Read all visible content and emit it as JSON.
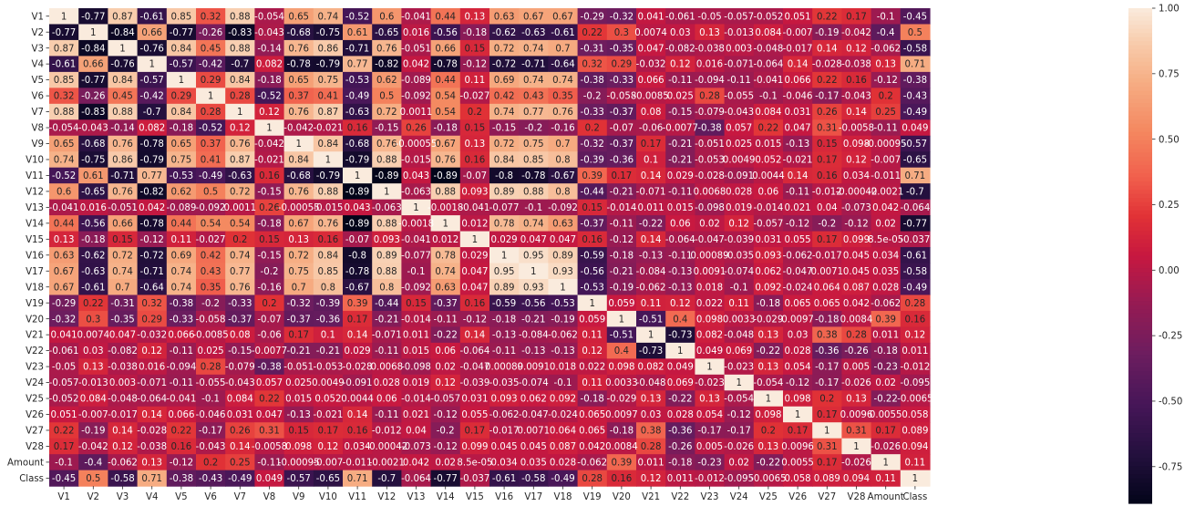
{
  "chart_data": {
    "type": "heatmap",
    "title": "",
    "xlabel": "",
    "ylabel": "",
    "labels": [
      "V1",
      "V2",
      "V3",
      "V4",
      "V5",
      "V6",
      "V7",
      "V8",
      "V9",
      "V10",
      "V11",
      "V12",
      "V13",
      "V14",
      "V15",
      "V16",
      "V17",
      "V18",
      "V19",
      "V20",
      "V21",
      "V22",
      "V23",
      "V24",
      "V25",
      "V26",
      "V27",
      "V28",
      "Amount",
      "Class"
    ],
    "annotations": [
      [
        "1",
        "-0.77",
        "0.87",
        "-0.61",
        "0.85",
        "0.32",
        "0.88",
        "-0.054",
        "0.65",
        "0.74",
        "-0.52",
        "0.6",
        "-0.041",
        "0.44",
        "0.13",
        "0.63",
        "0.67",
        "0.67",
        "-0.29",
        "-0.32",
        "0.041",
        "-0.061",
        "-0.05",
        "-0.057",
        "-0.052",
        "0.051",
        "0.22",
        "0.17",
        "-0.1",
        "-0.45"
      ],
      [
        "-0.77",
        "1",
        "-0.84",
        "0.66",
        "-0.77",
        "-0.26",
        "-0.83",
        "-0.043",
        "-0.68",
        "-0.75",
        "0.61",
        "-0.65",
        "0.016",
        "-0.56",
        "-0.18",
        "-0.62",
        "-0.63",
        "-0.61",
        "0.22",
        "0.3",
        "0.0074",
        "0.03",
        "0.13",
        "-0.013",
        "0.084",
        "-0.007",
        "-0.19",
        "-0.042",
        "-0.4",
        "0.5"
      ],
      [
        "0.87",
        "-0.84",
        "1",
        "-0.76",
        "0.84",
        "0.45",
        "0.88",
        "-0.14",
        "0.76",
        "0.86",
        "-0.71",
        "0.76",
        "-0.051",
        "0.66",
        "0.15",
        "0.72",
        "0.74",
        "0.7",
        "-0.31",
        "-0.35",
        "0.047",
        "-0.082",
        "-0.038",
        "0.003",
        "-0.048",
        "-0.017",
        "0.14",
        "0.12",
        "-0.062",
        "-0.58"
      ],
      [
        "-0.61",
        "0.66",
        "-0.76",
        "1",
        "-0.57",
        "-0.42",
        "-0.7",
        "0.082",
        "-0.78",
        "-0.79",
        "0.77",
        "-0.82",
        "0.042",
        "-0.78",
        "-0.12",
        "-0.72",
        "-0.71",
        "-0.64",
        "0.32",
        "0.29",
        "-0.032",
        "0.12",
        "0.016",
        "-0.071",
        "-0.064",
        "0.14",
        "-0.028",
        "-0.038",
        "0.13",
        "0.71"
      ],
      [
        "0.85",
        "-0.77",
        "0.84",
        "-0.57",
        "1",
        "0.29",
        "0.84",
        "-0.18",
        "0.65",
        "0.75",
        "-0.53",
        "0.62",
        "-0.089",
        "0.44",
        "0.11",
        "0.69",
        "0.74",
        "0.74",
        "-0.38",
        "-0.33",
        "0.066",
        "-0.11",
        "-0.094",
        "-0.11",
        "-0.041",
        "0.066",
        "0.22",
        "0.16",
        "-0.12",
        "-0.38"
      ],
      [
        "0.32",
        "-0.26",
        "0.45",
        "-0.42",
        "0.29",
        "1",
        "0.28",
        "-0.52",
        "0.37",
        "0.41",
        "-0.49",
        "0.5",
        "-0.092",
        "0.54",
        "-0.027",
        "0.42",
        "0.43",
        "0.35",
        "-0.2",
        "-0.058",
        "-0.0085",
        "0.025",
        "0.28",
        "-0.055",
        "-0.1",
        "-0.046",
        "-0.17",
        "-0.043",
        "0.2",
        "-0.43"
      ],
      [
        "0.88",
        "-0.83",
        "0.88",
        "-0.7",
        "0.84",
        "0.28",
        "1",
        "0.12",
        "0.76",
        "0.87",
        "-0.63",
        "0.72",
        "0.0011",
        "0.54",
        "0.2",
        "0.74",
        "0.77",
        "0.76",
        "-0.33",
        "-0.37",
        "0.08",
        "-0.15",
        "-0.079",
        "-0.043",
        "0.084",
        "0.031",
        "0.26",
        "0.14",
        "0.25",
        "-0.49"
      ],
      [
        "-0.054",
        "-0.043",
        "-0.14",
        "0.082",
        "-0.18",
        "-0.52",
        "0.12",
        "1",
        "-0.042",
        "-0.021",
        "0.16",
        "-0.15",
        "0.26",
        "-0.18",
        "0.15",
        "-0.15",
        "-0.2",
        "-0.16",
        "0.2",
        "-0.07",
        "-0.06",
        "-0.0077",
        "-0.38",
        "0.057",
        "0.22",
        "0.047",
        "0.31",
        "-0.0058",
        "-0.11",
        "0.049"
      ],
      [
        "0.65",
        "-0.68",
        "0.76",
        "-0.78",
        "0.65",
        "0.37",
        "0.76",
        "-0.042",
        "1",
        "0.84",
        "-0.68",
        "0.76",
        "-0.00055",
        "0.67",
        "0.13",
        "0.72",
        "0.75",
        "0.7",
        "-0.32",
        "-0.37",
        "0.17",
        "-0.21",
        "-0.051",
        "0.025",
        "0.015",
        "-0.13",
        "0.15",
        "0.098",
        "-0.00095",
        "-0.57"
      ],
      [
        "0.74",
        "-0.75",
        "0.86",
        "-0.79",
        "0.75",
        "0.41",
        "0.87",
        "-0.021",
        "0.84",
        "1",
        "-0.79",
        "0.88",
        "-0.015",
        "0.76",
        "0.16",
        "0.84",
        "0.85",
        "0.8",
        "-0.39",
        "-0.36",
        "0.1",
        "-0.21",
        "-0.053",
        "0.0049",
        "0.052",
        "-0.021",
        "0.17",
        "0.12",
        "-0.007",
        "-0.65"
      ],
      [
        "-0.52",
        "0.61",
        "-0.71",
        "0.77",
        "-0.53",
        "-0.49",
        "-0.63",
        "0.16",
        "-0.68",
        "-0.79",
        "1",
        "-0.89",
        "0.043",
        "-0.89",
        "-0.07",
        "-0.8",
        "-0.78",
        "-0.67",
        "0.39",
        "0.17",
        "0.14",
        "0.029",
        "-0.028",
        "-0.091",
        "0.0044",
        "0.14",
        "0.16",
        "0.034",
        "-0.011",
        "0.71"
      ],
      [
        "0.6",
        "-0.65",
        "0.76",
        "-0.82",
        "0.62",
        "0.5",
        "0.72",
        "-0.15",
        "0.76",
        "0.88",
        "-0.89",
        "1",
        "-0.063",
        "0.88",
        "0.093",
        "0.89",
        "0.88",
        "0.8",
        "-0.44",
        "-0.21",
        "-0.071",
        "-0.11",
        "0.0068",
        "0.028",
        "0.06",
        "-0.11",
        "-0.012",
        "-0.00042",
        "-0.0021",
        "-0.7"
      ],
      [
        "-0.041",
        "0.016",
        "-0.051",
        "0.042",
        "-0.089",
        "-0.092",
        "0.0011",
        "0.26",
        "-0.00055",
        "-0.015",
        "0.043",
        "-0.063",
        "1",
        "-0.0018",
        "-0.041",
        "-0.077",
        "-0.1",
        "-0.092",
        "0.15",
        "-0.014",
        "0.011",
        "0.015",
        "-0.098",
        "0.019",
        "-0.014",
        "0.021",
        "0.04",
        "-0.073",
        "0.042",
        "-0.064"
      ],
      [
        "0.44",
        "-0.56",
        "0.66",
        "-0.78",
        "0.44",
        "0.54",
        "0.54",
        "-0.18",
        "0.67",
        "0.76",
        "-0.89",
        "0.88",
        "-0.0018",
        "1",
        "0.012",
        "0.78",
        "0.74",
        "0.63",
        "-0.37",
        "-0.11",
        "-0.22",
        "0.06",
        "0.02",
        "0.12",
        "-0.057",
        "-0.12",
        "-0.2",
        "-0.12",
        "0.02",
        "-0.77"
      ],
      [
        "0.13",
        "-0.18",
        "0.15",
        "-0.12",
        "0.11",
        "-0.027",
        "0.2",
        "0.15",
        "0.13",
        "0.16",
        "-0.07",
        "0.093",
        "-0.041",
        "0.012",
        "1",
        "0.029",
        "0.047",
        "0.047",
        "0.16",
        "-0.12",
        "0.14",
        "-0.064",
        "-0.047",
        "-0.039",
        "0.031",
        "0.055",
        "0.17",
        "0.099",
        "8.5e-05",
        "-0.037"
      ],
      [
        "0.63",
        "-0.62",
        "0.72",
        "-0.72",
        "0.69",
        "0.42",
        "0.74",
        "-0.15",
        "0.72",
        "0.84",
        "-0.8",
        "0.89",
        "-0.077",
        "0.78",
        "0.029",
        "1",
        "0.95",
        "0.89",
        "-0.59",
        "-0.18",
        "-0.13",
        "-0.11",
        "0.00089",
        "-0.035",
        "0.093",
        "-0.062",
        "-0.017",
        "0.045",
        "0.034",
        "-0.61"
      ],
      [
        "0.67",
        "-0.63",
        "0.74",
        "-0.71",
        "0.74",
        "0.43",
        "0.77",
        "-0.2",
        "0.75",
        "0.85",
        "-0.78",
        "0.88",
        "-0.1",
        "0.74",
        "0.047",
        "0.95",
        "1",
        "0.93",
        "-0.56",
        "-0.21",
        "-0.084",
        "-0.13",
        "0.0091",
        "-0.074",
        "0.062",
        "-0.047",
        "0.0071",
        "0.045",
        "0.035",
        "-0.58"
      ],
      [
        "0.67",
        "-0.61",
        "0.7",
        "-0.64",
        "0.74",
        "0.35",
        "0.76",
        "-0.16",
        "0.7",
        "0.8",
        "-0.67",
        "0.8",
        "-0.092",
        "0.63",
        "0.047",
        "0.89",
        "0.93",
        "1",
        "-0.53",
        "-0.19",
        "-0.062",
        "-0.13",
        "0.018",
        "-0.1",
        "0.092",
        "-0.024",
        "0.064",
        "0.087",
        "0.028",
        "-0.49"
      ],
      [
        "-0.29",
        "0.22",
        "-0.31",
        "0.32",
        "-0.38",
        "-0.2",
        "-0.33",
        "0.2",
        "-0.32",
        "-0.39",
        "0.39",
        "-0.44",
        "0.15",
        "-0.37",
        "0.16",
        "-0.59",
        "-0.56",
        "-0.53",
        "1",
        "0.059",
        "0.11",
        "0.12",
        "0.022",
        "0.11",
        "-0.18",
        "0.065",
        "0.065",
        "0.042",
        "-0.062",
        "0.28"
      ],
      [
        "-0.32",
        "0.3",
        "-0.35",
        "0.29",
        "-0.33",
        "-0.058",
        "-0.37",
        "-0.07",
        "-0.37",
        "-0.36",
        "0.17",
        "-0.21",
        "-0.014",
        "-0.11",
        "-0.12",
        "-0.18",
        "-0.21",
        "-0.19",
        "0.059",
        "1",
        "-0.51",
        "0.4",
        "0.098",
        "0.0033",
        "-0.029",
        "0.0097",
        "-0.18",
        "0.0084",
        "0.39",
        "0.16"
      ],
      [
        "0.041",
        "0.0074",
        "0.047",
        "-0.032",
        "0.066",
        "-0.0085",
        "0.08",
        "-0.06",
        "0.17",
        "0.1",
        "0.14",
        "-0.071",
        "0.011",
        "-0.22",
        "0.14",
        "-0.13",
        "-0.084",
        "-0.062",
        "0.11",
        "-0.51",
        "1",
        "-0.73",
        "0.082",
        "-0.048",
        "0.13",
        "0.03",
        "0.38",
        "0.28",
        "0.011",
        "0.12"
      ],
      [
        "-0.061",
        "0.03",
        "-0.082",
        "0.12",
        "-0.11",
        "0.025",
        "-0.15",
        "-0.0077",
        "-0.21",
        "-0.21",
        "0.029",
        "-0.11",
        "0.015",
        "0.06",
        "-0.064",
        "-0.11",
        "-0.13",
        "-0.13",
        "0.12",
        "0.4",
        "-0.73",
        "1",
        "0.049",
        "0.069",
        "-0.22",
        "0.028",
        "-0.36",
        "-0.26",
        "-0.18",
        "0.011"
      ],
      [
        "-0.05",
        "0.13",
        "-0.038",
        "0.016",
        "-0.094",
        "0.28",
        "-0.079",
        "-0.38",
        "-0.051",
        "-0.053",
        "-0.028",
        "0.0068",
        "-0.098",
        "0.02",
        "-0.047",
        "0.00089",
        "0.0091",
        "0.018",
        "0.022",
        "0.098",
        "0.082",
        "0.049",
        "1",
        "-0.023",
        "0.13",
        "0.054",
        "-0.17",
        "0.005",
        "-0.23",
        "-0.012"
      ],
      [
        "-0.057",
        "-0.013",
        "0.003",
        "-0.071",
        "-0.11",
        "-0.055",
        "-0.043",
        "0.057",
        "0.025",
        "0.0049",
        "-0.091",
        "0.028",
        "0.019",
        "0.12",
        "-0.039",
        "-0.035",
        "-0.074",
        "-0.1",
        "0.11",
        "0.0033",
        "-0.048",
        "0.069",
        "-0.023",
        "1",
        "-0.054",
        "-0.12",
        "-0.17",
        "-0.026",
        "0.02",
        "-0.095"
      ],
      [
        "-0.052",
        "0.084",
        "-0.048",
        "-0.064",
        "-0.041",
        "-0.1",
        "0.084",
        "0.22",
        "0.015",
        "0.052",
        "0.0044",
        "0.06",
        "-0.014",
        "-0.057",
        "0.031",
        "0.093",
        "0.062",
        "0.092",
        "-0.18",
        "-0.029",
        "0.13",
        "-0.22",
        "0.13",
        "-0.054",
        "1",
        "0.098",
        "0.2",
        "0.13",
        "-0.22",
        "-0.0065"
      ],
      [
        "0.051",
        "-0.007",
        "-0.017",
        "0.14",
        "0.066",
        "-0.046",
        "0.031",
        "0.047",
        "-0.13",
        "-0.021",
        "0.14",
        "-0.11",
        "0.021",
        "-0.12",
        "0.055",
        "-0.062",
        "-0.047",
        "-0.024",
        "0.065",
        "0.0097",
        "0.03",
        "0.028",
        "0.054",
        "-0.12",
        "0.098",
        "1",
        "0.17",
        "0.0096",
        "0.0055",
        "0.058"
      ],
      [
        "0.22",
        "-0.19",
        "0.14",
        "-0.028",
        "0.22",
        "-0.17",
        "0.26",
        "0.31",
        "0.15",
        "0.17",
        "0.16",
        "-0.012",
        "0.04",
        "-0.2",
        "0.17",
        "-0.017",
        "0.0071",
        "0.064",
        "0.065",
        "-0.18",
        "0.38",
        "-0.36",
        "-0.17",
        "-0.17",
        "0.2",
        "0.17",
        "1",
        "0.31",
        "0.17",
        "0.089"
      ],
      [
        "0.17",
        "-0.042",
        "0.12",
        "-0.038",
        "0.16",
        "-0.043",
        "0.14",
        "-0.0058",
        "0.098",
        "0.12",
        "0.034",
        "-0.00042",
        "-0.073",
        "-0.12",
        "0.099",
        "0.045",
        "0.045",
        "0.087",
        "0.042",
        "0.0084",
        "0.28",
        "-0.26",
        "0.005",
        "-0.026",
        "0.13",
        "0.0096",
        "0.31",
        "1",
        "-0.026",
        "0.094"
      ],
      [
        "-0.1",
        "-0.4",
        "-0.062",
        "0.13",
        "-0.12",
        "0.2",
        "0.25",
        "-0.11",
        "-0.00095",
        "-0.007",
        "-0.011",
        "-0.0021",
        "0.042",
        "0.02",
        "8.5e-05",
        "0.034",
        "0.035",
        "0.028",
        "-0.062",
        "0.39",
        "0.011",
        "-0.18",
        "-0.23",
        "0.02",
        "-0.22",
        "0.0055",
        "0.17",
        "-0.026",
        "1",
        "0.11"
      ],
      [
        "-0.45",
        "0.5",
        "-0.58",
        "0.71",
        "-0.38",
        "-0.43",
        "-0.49",
        "0.049",
        "-0.57",
        "-0.65",
        "0.71",
        "-0.7",
        "-0.064",
        "-0.77",
        "-0.037",
        "-0.61",
        "-0.58",
        "-0.49",
        "0.28",
        "0.16",
        "0.12",
        "0.011",
        "-0.012",
        "-0.095",
        "-0.0065",
        "0.058",
        "0.089",
        "0.094",
        "0.11",
        "1"
      ]
    ],
    "colorbar": {
      "min": -0.89,
      "max": 1.0,
      "ticks": [
        "1.00",
        "0.75",
        "0.50",
        "0.25",
        "0.00",
        "-0.25",
        "-0.50",
        "-0.75"
      ],
      "colormap": "rocket"
    },
    "grid": false,
    "legend": "colorbar-right"
  }
}
